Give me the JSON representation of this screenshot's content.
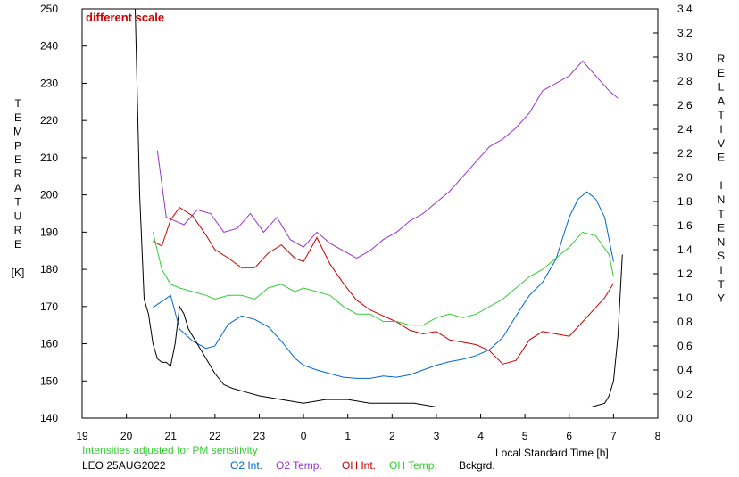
{
  "chart_data": {
    "type": "line",
    "annotation": "different scale",
    "note": "Intensities adjusted for PM sensitivity",
    "station_date": "LEO 25AUG2022",
    "xlabel": "Local Standard Time [h]",
    "ylabel_left": [
      "T",
      "E",
      "M",
      "P",
      "E",
      "R",
      "A",
      "T",
      "U",
      "R",
      "E",
      "",
      "[K]"
    ],
    "ylabel_right": [
      "R",
      "E",
      "L",
      "A",
      "T",
      "I",
      "V",
      "E",
      "",
      "I",
      "N",
      "T",
      "E",
      "N",
      "S",
      "I",
      "T",
      "Y"
    ],
    "xlim": [
      19,
      32
    ],
    "x_tick_labels": [
      "19",
      "20",
      "21",
      "22",
      "23",
      "0",
      "1",
      "2",
      "3",
      "4",
      "5",
      "6",
      "7",
      "8"
    ],
    "ylim_left": [
      140,
      250
    ],
    "y_left_ticks": [
      140,
      150,
      160,
      170,
      180,
      190,
      200,
      210,
      220,
      230,
      240,
      250
    ],
    "ylim_right": [
      0.0,
      3.4
    ],
    "y_right_ticks": [
      "0.0",
      "0.2",
      "0.4",
      "0.6",
      "0.8",
      "1.0",
      "1.2",
      "1.4",
      "1.6",
      "1.8",
      "2.0",
      "2.2",
      "2.4",
      "2.6",
      "2.8",
      "3.0",
      "3.2",
      "3.4"
    ],
    "grid": false,
    "legend_position": "bottom",
    "series": [
      {
        "name": "O2 Int.",
        "color": "#0066cc",
        "axis": "right",
        "x": [
          20.6,
          20.8,
          21.0,
          21.2,
          21.5,
          21.8,
          22.0,
          22.3,
          22.6,
          22.9,
          23.2,
          23.5,
          23.8,
          24.0,
          24.3,
          24.6,
          24.9,
          25.2,
          25.5,
          25.8,
          26.1,
          26.4,
          26.7,
          27.0,
          27.3,
          27.6,
          27.9,
          28.2,
          28.5,
          28.8,
          29.1,
          29.4,
          29.7,
          30.0,
          30.2,
          30.4,
          30.6,
          30.8,
          31.0
        ],
        "y": [
          0.92,
          0.97,
          1.02,
          0.74,
          0.64,
          0.58,
          0.6,
          0.78,
          0.85,
          0.82,
          0.76,
          0.64,
          0.5,
          0.44,
          0.4,
          0.37,
          0.34,
          0.33,
          0.33,
          0.35,
          0.34,
          0.36,
          0.4,
          0.44,
          0.47,
          0.49,
          0.52,
          0.57,
          0.67,
          0.85,
          1.02,
          1.13,
          1.32,
          1.67,
          1.82,
          1.88,
          1.82,
          1.67,
          1.3
        ]
      },
      {
        "name": "O2 Temp.",
        "color": "#9933cc",
        "axis": "left",
        "x": [
          20.7,
          20.9,
          21.1,
          21.3,
          21.6,
          21.9,
          22.2,
          22.5,
          22.8,
          23.1,
          23.4,
          23.7,
          24.0,
          24.3,
          24.6,
          24.9,
          25.2,
          25.5,
          25.8,
          26.1,
          26.4,
          26.7,
          27.0,
          27.3,
          27.6,
          27.9,
          28.2,
          28.5,
          28.8,
          29.1,
          29.4,
          29.7,
          30.0,
          30.3,
          30.6,
          30.9,
          31.1
        ],
        "y": [
          212,
          194,
          193,
          192,
          196,
          195,
          190,
          191,
          195,
          190,
          194,
          188,
          186,
          190,
          187,
          185,
          183,
          185,
          188,
          190,
          193,
          195,
          198,
          201,
          205,
          209,
          213,
          215,
          218,
          222,
          228,
          230,
          232,
          236,
          232,
          228,
          226
        ]
      },
      {
        "name": "OH Int.",
        "color": "#cc0000",
        "axis": "right",
        "x": [
          20.6,
          20.8,
          21.0,
          21.2,
          21.5,
          21.8,
          22.0,
          22.3,
          22.6,
          22.9,
          23.2,
          23.5,
          23.8,
          24.0,
          24.3,
          24.6,
          24.9,
          25.2,
          25.5,
          25.8,
          26.1,
          26.4,
          26.7,
          27.0,
          27.3,
          27.6,
          27.9,
          28.2,
          28.5,
          28.8,
          29.1,
          29.4,
          29.7,
          30.0,
          30.3,
          30.6,
          30.8,
          31.0
        ],
        "y": [
          1.47,
          1.43,
          1.65,
          1.75,
          1.68,
          1.52,
          1.4,
          1.33,
          1.25,
          1.25,
          1.37,
          1.44,
          1.33,
          1.3,
          1.5,
          1.28,
          1.12,
          0.98,
          0.9,
          0.85,
          0.8,
          0.73,
          0.7,
          0.72,
          0.65,
          0.63,
          0.61,
          0.56,
          0.45,
          0.48,
          0.65,
          0.72,
          0.7,
          0.68,
          0.8,
          0.92,
          1.0,
          1.12
        ]
      },
      {
        "name": "OH Temp.",
        "color": "#33cc33",
        "axis": "left",
        "x": [
          20.6,
          20.8,
          21.0,
          21.2,
          21.5,
          21.8,
          22.0,
          22.3,
          22.6,
          22.9,
          23.2,
          23.5,
          23.8,
          24.0,
          24.3,
          24.6,
          24.9,
          25.2,
          25.5,
          25.8,
          26.1,
          26.4,
          26.7,
          27.0,
          27.3,
          27.6,
          27.9,
          28.2,
          28.5,
          28.8,
          29.1,
          29.4,
          29.7,
          30.0,
          30.3,
          30.6,
          30.9,
          31.0
        ],
        "y": [
          190,
          180,
          176,
          175,
          174,
          173,
          172,
          173,
          173,
          172,
          175,
          176,
          174,
          175,
          174,
          173,
          170,
          168,
          168,
          166,
          166,
          165,
          165,
          167,
          168,
          167,
          168,
          170,
          172,
          175,
          178,
          180,
          183,
          186,
          190,
          189,
          184,
          178
        ]
      },
      {
        "name": "Bckgrd.",
        "color": "#000000",
        "axis": "left",
        "x": [
          20.2,
          20.3,
          20.4,
          20.5,
          20.6,
          20.7,
          20.8,
          20.9,
          21.0,
          21.1,
          21.2,
          21.3,
          21.4,
          21.5,
          21.7,
          21.9,
          22.0,
          22.2,
          22.4,
          22.7,
          23.0,
          23.5,
          24.0,
          24.5,
          25.0,
          25.5,
          26.0,
          26.5,
          27.0,
          27.5,
          28.0,
          28.5,
          29.0,
          29.5,
          30.0,
          30.5,
          30.8,
          30.9,
          31.0,
          31.1,
          31.2
        ],
        "y": [
          250,
          200,
          172,
          168,
          160,
          156,
          155,
          155,
          154,
          160,
          170,
          168,
          164,
          162,
          158,
          154,
          152,
          149,
          148,
          147,
          146,
          145,
          144,
          145,
          145,
          144,
          144,
          144,
          143,
          143,
          143,
          143,
          143,
          143,
          143,
          143,
          144,
          146,
          150,
          162,
          184
        ]
      }
    ]
  },
  "colors": {
    "annotation": "#cc0000",
    "note": "#33cc33",
    "legend_o2_int": "#0066cc",
    "legend_o2_temp": "#9933cc",
    "legend_oh_int": "#cc0000",
    "legend_oh_temp": "#33cc33",
    "legend_bckgrd": "#000000"
  }
}
